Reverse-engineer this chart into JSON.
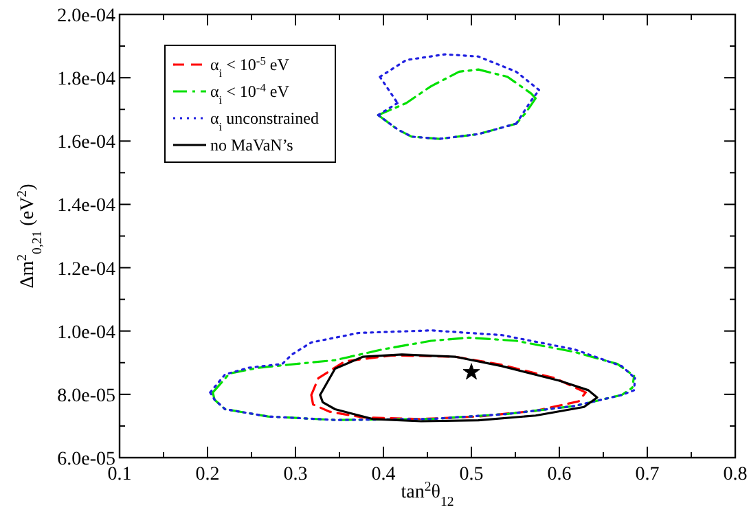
{
  "chart_data": {
    "type": "line",
    "xlabel": "tan$^{2}$θ$_{12}$",
    "ylabel": "Δm$^{2}$$_{0,21}$ (eV$^{2}$)",
    "xlim": [
      0.1,
      0.8
    ],
    "ylim": [
      6e-05,
      0.0002
    ],
    "xticks": [
      0.1,
      {
        "value": 0.15,
        "label": null
      },
      0.2,
      {
        "value": 0.25,
        "label": null
      },
      0.3,
      {
        "value": 0.35,
        "label": null
      },
      0.4,
      {
        "value": 0.45,
        "label": null
      },
      0.5,
      {
        "value": 0.55,
        "label": null
      },
      0.6,
      {
        "value": 0.65,
        "label": null
      },
      0.7,
      {
        "value": 0.75,
        "label": null
      },
      0.8
    ],
    "yticks": [
      {
        "value": 6e-05,
        "label": "6.0e-05"
      },
      {
        "value": 7e-05,
        "label": null
      },
      {
        "value": 8e-05,
        "label": "8.0e-05"
      },
      {
        "value": 9e-05,
        "label": null
      },
      {
        "value": 0.0001,
        "label": "1.0e-04"
      },
      {
        "value": 0.00011,
        "label": null
      },
      {
        "value": 0.00012,
        "label": "1.2e-04"
      },
      {
        "value": 0.00013,
        "label": null
      },
      {
        "value": 0.00014,
        "label": "1.4e-04"
      },
      {
        "value": 0.00015,
        "label": null
      },
      {
        "value": 0.00016,
        "label": "1.6e-04"
      },
      {
        "value": 0.00017,
        "label": null
      },
      {
        "value": 0.00018,
        "label": "1.8e-04"
      },
      {
        "value": 0.00019,
        "label": null
      },
      {
        "value": 0.0002,
        "label": "2.0e-04"
      }
    ],
    "grid": false,
    "legend": "top left",
    "series": [
      {
        "name": "α$_{i}$ < 10$^{-5}$ eV",
        "color": "#ff0000",
        "line_style": "dashed",
        "x": [
          0.318,
          0.326,
          0.356,
          0.41,
          0.481,
          0.535,
          0.595,
          0.63,
          null,
          0.318,
          0.32,
          0.339,
          0.377,
          0.443,
          0.508,
          0.573,
          0.622,
          0.63
        ],
        "values": [
          7.98e-05,
          8.51e-05,
          9.04e-05,
          9.23e-05,
          9.19e-05,
          8.93e-05,
          8.51e-05,
          8.06e-05,
          null,
          7.98e-05,
          7.68e-05,
          7.45e-05,
          7.27e-05,
          7.22e-05,
          7.3e-05,
          7.48e-05,
          7.78e-05,
          8.06e-05
        ]
      },
      {
        "name": "α$_{i}$ < 10$^{-4}$ eV",
        "color": "#00e000",
        "line_style": "dashdot",
        "x": [
          0.206,
          0.225,
          0.258,
          0.29,
          0.345,
          0.399,
          0.454,
          0.497,
          0.551,
          0.617,
          0.666,
          0.685,
          null,
          0.206,
          0.208,
          0.22,
          0.269,
          0.345,
          0.454,
          0.541,
          0.617,
          0.671,
          0.683,
          0.685,
          null,
          0.394,
          0.426,
          0.454,
          0.486,
          0.508,
          0.541,
          0.568,
          0.573,
          null,
          0.394,
          0.416,
          0.432,
          0.464,
          0.508,
          0.551,
          0.562,
          0.573
        ],
        "values": [
          8.06e-05,
          8.66e-05,
          8.84e-05,
          8.93e-05,
          9.08e-05,
          9.42e-05,
          9.69e-05,
          9.79e-05,
          9.69e-05,
          9.34e-05,
          8.96e-05,
          8.58e-05,
          null,
          8.06e-05,
          7.83e-05,
          7.53e-05,
          7.3e-05,
          7.19e-05,
          7.22e-05,
          7.38e-05,
          7.63e-05,
          7.98e-05,
          8.21e-05,
          8.58e-05,
          null,
          0.0001682,
          0.000172,
          0.0001773,
          0.0001819,
          0.0001826,
          0.0001803,
          0.000175,
          0.0001735,
          null,
          0.0001682,
          0.0001637,
          0.0001614,
          0.0001607,
          0.0001622,
          0.0001655,
          0.000169,
          0.0001735
        ]
      },
      {
        "name": "α$_{i}$ unconstrained",
        "color": "#2020e0",
        "line_style": "dotted",
        "x": [
          0.203,
          0.22,
          0.247,
          0.285,
          0.296,
          0.318,
          0.372,
          0.454,
          0.535,
          0.617,
          0.671,
          0.686,
          null,
          0.203,
          0.208,
          0.22,
          0.269,
          0.345,
          0.454,
          0.541,
          0.617,
          0.671,
          0.685,
          0.686,
          null,
          0.396,
          0.426,
          0.47,
          0.508,
          0.551,
          0.577,
          null,
          0.551,
          0.568,
          0.577,
          null,
          0.394,
          0.416,
          0.432,
          0.464,
          0.508,
          0.551,
          null,
          0.394,
          0.416,
          null,
          0.396,
          0.416
        ],
        "values": [
          8.06e-05,
          8.63e-05,
          8.84e-05,
          8.96e-05,
          9.26e-05,
          9.64e-05,
          9.94e-05,
          0.0001002,
          9.87e-05,
          9.42e-05,
          8.89e-05,
          8.51e-05,
          null,
          8.06e-05,
          7.83e-05,
          7.53e-05,
          7.3e-05,
          7.19e-05,
          7.22e-05,
          7.38e-05,
          7.63e-05,
          7.98e-05,
          8.13e-05,
          8.51e-05,
          null,
          0.0001803,
          0.0001856,
          0.0001874,
          0.0001867,
          0.0001819,
          0.0001761,
          null,
          0.0001655,
          0.0001728,
          0.0001761,
          null,
          0.0001682,
          0.0001637,
          0.0001614,
          0.0001607,
          0.0001622,
          0.0001655,
          null,
          0.0001682,
          0.000172,
          null,
          0.0001803,
          0.000172
        ]
      },
      {
        "name": "no MaVaN’s",
        "color": "#000000",
        "line_style": "solid",
        "x": [
          0.328,
          0.345,
          0.377,
          0.421,
          0.481,
          0.535,
          0.6,
          0.633,
          0.643,
          null,
          0.328,
          0.331,
          0.345,
          0.388,
          0.443,
          0.508,
          0.573,
          0.628,
          0.643
        ],
        "values": [
          7.98e-05,
          8.81e-05,
          9.19e-05,
          9.26e-05,
          9.19e-05,
          8.89e-05,
          8.43e-05,
          8.13e-05,
          7.9e-05,
          null,
          7.98e-05,
          7.75e-05,
          7.53e-05,
          7.22e-05,
          7.15e-05,
          7.18e-05,
          7.33e-05,
          7.6e-05,
          7.9e-05
        ]
      },
      {
        "type": "scatter",
        "marker": "star",
        "color": "#000000",
        "x": [
          0.5
        ],
        "values": [
          8.7e-05
        ]
      }
    ]
  }
}
